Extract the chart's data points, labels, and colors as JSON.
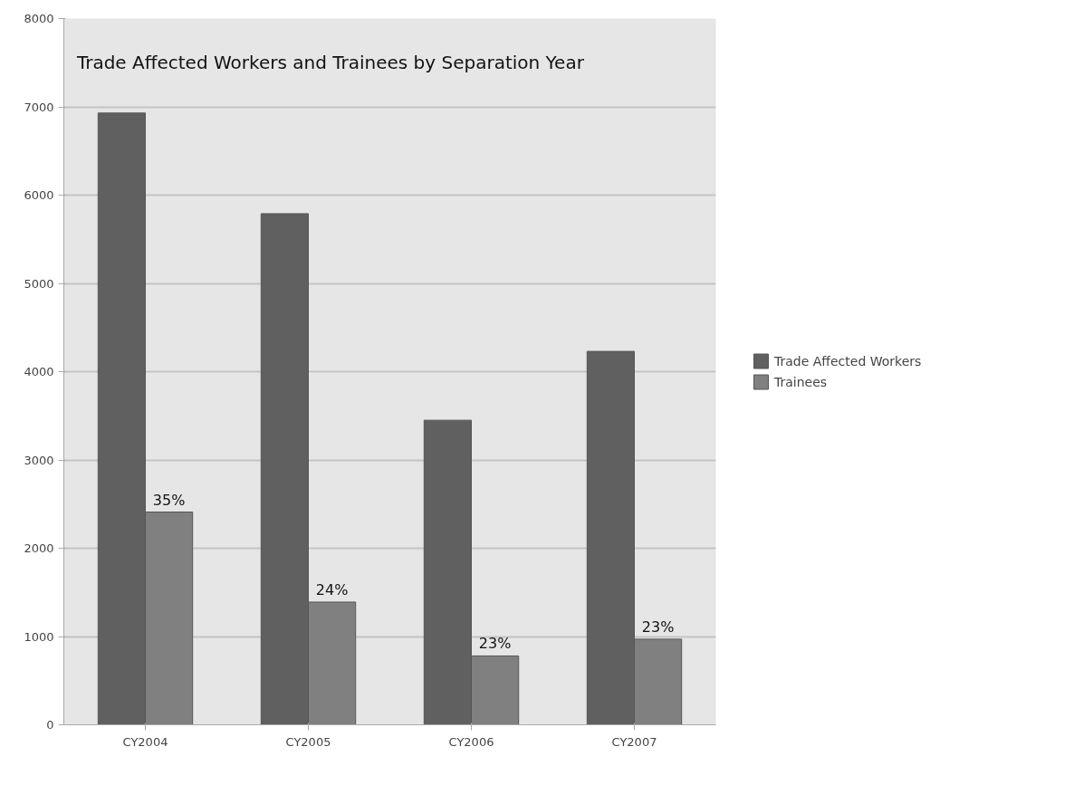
{
  "chart_data": {
    "type": "bar",
    "title": "Trade Affected Workers and Trainees by Separation Year",
    "categories": [
      "CY2004",
      "CY2005",
      "CY2006",
      "CY2007"
    ],
    "series": [
      {
        "name": "Trade Affected Workers",
        "color": "#606060",
        "values": [
          6930,
          5790,
          3450,
          4230
        ]
      },
      {
        "name": "Trainees",
        "color": "#808080",
        "values": [
          2410,
          1390,
          780,
          970
        ]
      }
    ],
    "annotations": [
      {
        "text": "35%",
        "x": "CY2004",
        "y": 2410
      },
      {
        "text": "24%",
        "x": "CY2005",
        "y": 1390
      },
      {
        "text": "23%",
        "x": "CY2006",
        "y": 780
      },
      {
        "text": "23%",
        "x": "CY2007",
        "y": 970
      }
    ],
    "ylim": [
      0,
      8000
    ],
    "yticks": [
      0,
      1000,
      2000,
      3000,
      4000,
      5000,
      6000,
      7000,
      8000
    ],
    "grid": "y",
    "legend": "right"
  }
}
